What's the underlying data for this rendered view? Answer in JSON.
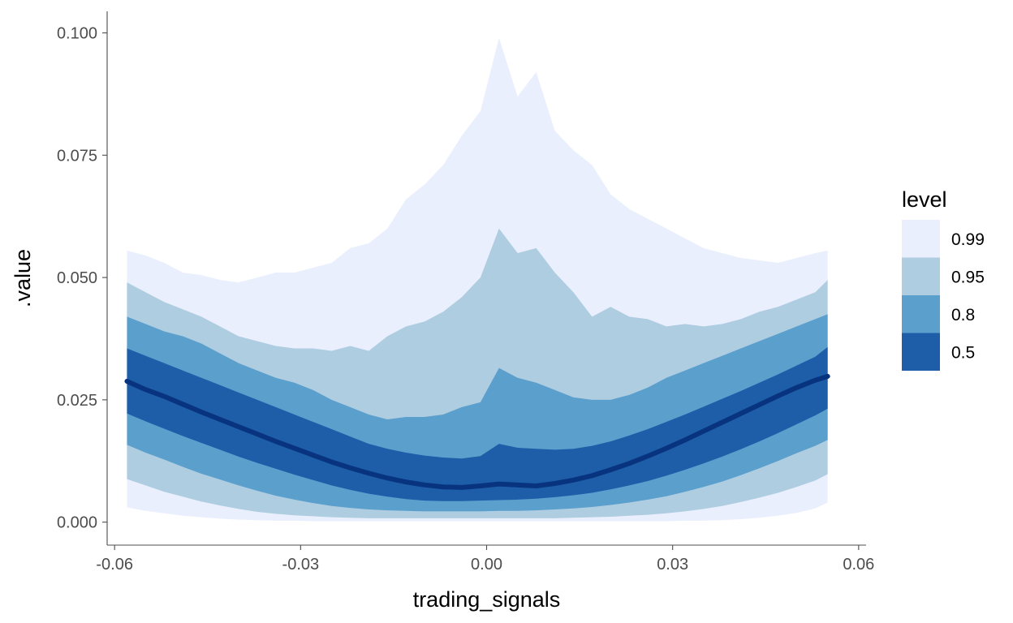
{
  "chart_data": {
    "type": "area",
    "subtype": "interval-ribbons with median line",
    "xlabel": "trading_signals",
    "ylabel": ".value",
    "xlim": [
      -0.0612,
      0.0612
    ],
    "ylim": [
      -0.0047,
      0.1044
    ],
    "x_ticks": [
      {
        "value": -0.06,
        "label": "-0.06"
      },
      {
        "value": -0.03,
        "label": "-0.03"
      },
      {
        "value": 0.0,
        "label": "0.00"
      },
      {
        "value": 0.03,
        "label": "0.03"
      },
      {
        "value": 0.06,
        "label": "0.06"
      }
    ],
    "y_ticks": [
      {
        "value": 0.0,
        "label": "0.000"
      },
      {
        "value": 0.025,
        "label": "0.025"
      },
      {
        "value": 0.05,
        "label": "0.050"
      },
      {
        "value": 0.075,
        "label": "0.075"
      },
      {
        "value": 0.1,
        "label": "0.100"
      }
    ],
    "grid": false,
    "legend": {
      "title": "level",
      "position": "right",
      "entries": [
        {
          "label": "0.99",
          "color": "#eaeffd"
        },
        {
          "label": "0.95",
          "color": "#afcde1"
        },
        {
          "label": "0.8",
          "color": "#5b9fcd"
        },
        {
          "label": "0.5",
          "color": "#1e5ea8"
        }
      ]
    },
    "median_color": "#08347f",
    "x": [
      -0.058,
      -0.055,
      -0.052,
      -0.049,
      -0.046,
      -0.043,
      -0.04,
      -0.037,
      -0.034,
      -0.031,
      -0.028,
      -0.025,
      -0.022,
      -0.019,
      -0.016,
      -0.013,
      -0.01,
      -0.007,
      -0.004,
      -0.001,
      0.002,
      0.005,
      0.008,
      0.011,
      0.014,
      0.017,
      0.02,
      0.023,
      0.026,
      0.029,
      0.032,
      0.035,
      0.038,
      0.041,
      0.044,
      0.047,
      0.05,
      0.053,
      0.055
    ],
    "series": [
      {
        "name": "0.99",
        "color": "#eaeffd",
        "lower": [
          0.003,
          0.0023,
          0.0018,
          0.0013,
          0.001,
          0.0007,
          0.0005,
          0.0004,
          0.0003,
          0.0003,
          0.0002,
          0.0002,
          0.0002,
          0.0002,
          0.0002,
          0.0002,
          0.0002,
          0.0002,
          0.0002,
          0.0002,
          0.0002,
          0.0002,
          0.0002,
          0.0002,
          0.0002,
          0.0002,
          0.0002,
          0.0002,
          0.0002,
          0.0002,
          0.0003,
          0.0003,
          0.0004,
          0.0006,
          0.0009,
          0.0013,
          0.0019,
          0.0028,
          0.004
        ],
        "upper": [
          0.0555,
          0.0545,
          0.053,
          0.051,
          0.0505,
          0.0495,
          0.049,
          0.05,
          0.051,
          0.051,
          0.052,
          0.053,
          0.056,
          0.057,
          0.06,
          0.066,
          0.069,
          0.073,
          0.079,
          0.084,
          0.099,
          0.087,
          0.092,
          0.08,
          0.076,
          0.073,
          0.067,
          0.064,
          0.062,
          0.06,
          0.058,
          0.056,
          0.055,
          0.054,
          0.0535,
          0.053,
          0.054,
          0.055,
          0.0555
        ]
      },
      {
        "name": "0.95",
        "color": "#afcde1",
        "lower": [
          0.0088,
          0.0075,
          0.0062,
          0.0052,
          0.0042,
          0.0034,
          0.0027,
          0.0021,
          0.0017,
          0.0014,
          0.0012,
          0.001,
          0.0009,
          0.0008,
          0.0008,
          0.0008,
          0.0008,
          0.0008,
          0.0008,
          0.0008,
          0.0008,
          0.0008,
          0.0008,
          0.0008,
          0.0009,
          0.001,
          0.0011,
          0.0013,
          0.0015,
          0.0018,
          0.0022,
          0.0027,
          0.0033,
          0.0041,
          0.005,
          0.006,
          0.0072,
          0.0085,
          0.0098
        ],
        "upper": [
          0.049,
          0.047,
          0.045,
          0.0435,
          0.042,
          0.04,
          0.038,
          0.037,
          0.036,
          0.0355,
          0.0355,
          0.035,
          0.036,
          0.035,
          0.038,
          0.04,
          0.041,
          0.043,
          0.046,
          0.05,
          0.06,
          0.055,
          0.056,
          0.051,
          0.047,
          0.042,
          0.044,
          0.042,
          0.0415,
          0.04,
          0.0405,
          0.04,
          0.0405,
          0.0415,
          0.043,
          0.044,
          0.0455,
          0.047,
          0.0495
        ]
      },
      {
        "name": "0.8",
        "color": "#5b9fcd",
        "lower": [
          0.0158,
          0.0142,
          0.0128,
          0.0113,
          0.0099,
          0.0087,
          0.0075,
          0.0064,
          0.0054,
          0.0046,
          0.0039,
          0.0033,
          0.0029,
          0.0026,
          0.0024,
          0.0023,
          0.0022,
          0.0022,
          0.0022,
          0.0022,
          0.0023,
          0.0023,
          0.0024,
          0.0026,
          0.0028,
          0.0031,
          0.0035,
          0.004,
          0.0046,
          0.0053,
          0.0062,
          0.0072,
          0.0083,
          0.0096,
          0.011,
          0.0125,
          0.0141,
          0.0156,
          0.0168
        ],
        "upper": [
          0.042,
          0.0405,
          0.039,
          0.038,
          0.0365,
          0.0345,
          0.0325,
          0.031,
          0.0295,
          0.0285,
          0.027,
          0.025,
          0.0235,
          0.022,
          0.021,
          0.0215,
          0.0215,
          0.022,
          0.0235,
          0.0245,
          0.0315,
          0.0295,
          0.0285,
          0.027,
          0.0255,
          0.025,
          0.025,
          0.026,
          0.0275,
          0.0295,
          0.031,
          0.0325,
          0.034,
          0.0355,
          0.037,
          0.0385,
          0.04,
          0.0415,
          0.0425
        ]
      },
      {
        "name": "0.5",
        "color": "#1e5ea8",
        "lower": [
          0.0222,
          0.0206,
          0.0191,
          0.0176,
          0.0162,
          0.0148,
          0.0134,
          0.0121,
          0.0109,
          0.0097,
          0.0086,
          0.0075,
          0.0066,
          0.0058,
          0.0052,
          0.0047,
          0.0044,
          0.0043,
          0.0043,
          0.0044,
          0.0045,
          0.0046,
          0.0048,
          0.0051,
          0.0055,
          0.006,
          0.0067,
          0.0075,
          0.0084,
          0.0095,
          0.0107,
          0.012,
          0.0134,
          0.0149,
          0.0165,
          0.0182,
          0.02,
          0.0218,
          0.0232
        ],
        "upper": [
          0.0355,
          0.034,
          0.0325,
          0.031,
          0.0295,
          0.028,
          0.0265,
          0.025,
          0.0235,
          0.022,
          0.0205,
          0.019,
          0.0175,
          0.016,
          0.015,
          0.0142,
          0.0136,
          0.0132,
          0.013,
          0.0135,
          0.016,
          0.0152,
          0.015,
          0.0148,
          0.015,
          0.0156,
          0.0165,
          0.0177,
          0.019,
          0.0205,
          0.022,
          0.0236,
          0.0252,
          0.0268,
          0.0285,
          0.0302,
          0.032,
          0.0338,
          0.0358
        ]
      }
    ],
    "median": {
      "name": "median",
      "values": [
        0.0288,
        0.0271,
        0.0257,
        0.0241,
        0.0225,
        0.021,
        0.0195,
        0.018,
        0.0165,
        0.0151,
        0.0137,
        0.0123,
        0.0111,
        0.01,
        0.009,
        0.0082,
        0.0076,
        0.0072,
        0.0071,
        0.0074,
        0.0078,
        0.0076,
        0.0074,
        0.0079,
        0.0086,
        0.0095,
        0.0107,
        0.012,
        0.0135,
        0.0151,
        0.0168,
        0.0186,
        0.0204,
        0.0222,
        0.024,
        0.0258,
        0.0275,
        0.029,
        0.0298
      ]
    }
  }
}
